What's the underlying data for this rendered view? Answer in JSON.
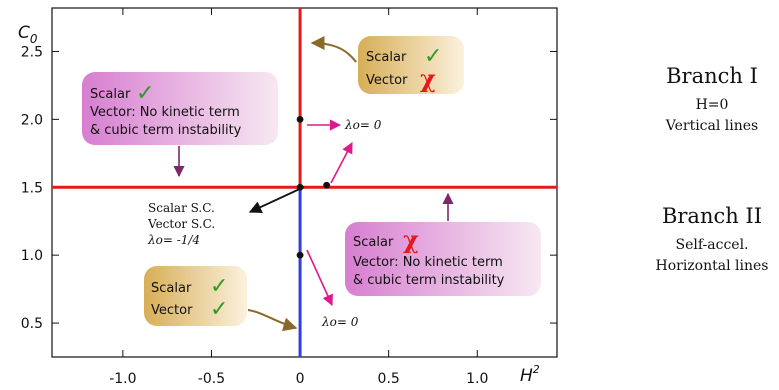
{
  "chart_data": {
    "type": "line",
    "xlabel": "H²",
    "ylabel": "C₀",
    "xlim": [
      -1.4,
      1.45
    ],
    "ylim": [
      0.25,
      2.82
    ],
    "x_ticks": [
      -1.0,
      -0.5,
      0,
      0.5,
      1.0
    ],
    "x_tick_labels": [
      "-1.0",
      "-0.5",
      "0",
      "0.5",
      "1.0"
    ],
    "y_ticks": [
      0.5,
      1.0,
      1.5,
      2.0,
      2.5
    ],
    "y_tick_labels": [
      "0.5",
      "1.0",
      "1.5",
      "2.0",
      "2.5"
    ],
    "grid": false,
    "colors": {
      "red": "#e41a1a",
      "blue": "#2f3fe0",
      "magenta": "#e0188a",
      "green": "#2f9b27"
    },
    "lines": [
      {
        "orientation": "vertical",
        "x": 0,
        "y_from": 1.5,
        "y_to": 2.82,
        "color": "#e41a1a"
      },
      {
        "orientation": "vertical",
        "x": 0,
        "y_from": 0.25,
        "y_to": 1.5,
        "color": "#2f3fe0"
      },
      {
        "orientation": "horizontal",
        "y": 1.5,
        "x_from": -1.4,
        "x_to": 1.45,
        "color": "#e41a1a"
      }
    ],
    "points": [
      {
        "x": 0,
        "y": 2.0
      },
      {
        "x": 0,
        "y": 1.5
      },
      {
        "x": 0,
        "y": 1.0
      },
      {
        "x": 0.15,
        "y": 1.515
      }
    ],
    "annotations": {
      "box_top_right": {
        "line1": "Scalar",
        "line2": "Vector",
        "mark1": "✓",
        "mark2": "χ"
      },
      "box_top_left": {
        "line1": "Scalar",
        "mark1": "✓",
        "line2": "Vector: No kinetic term",
        "line3": "& cubic term instability"
      },
      "box_bottom_right": {
        "line1": "Scalar",
        "mark1": "χ",
        "line2": "Vector: No kinetic term",
        "line3": "& cubic term instability"
      },
      "box_bottom_left": {
        "line1": "Scalar",
        "line2": "Vector",
        "mark1": "✓",
        "mark2": "✓"
      },
      "lambda_upper": "λo= 0",
      "lambda_lower": "λo= 0",
      "sc_label": {
        "line1": "Scalar S.C.",
        "line2": "Vector S.C.",
        "line3": "λo= -1/4"
      }
    }
  },
  "side_panel": {
    "branch1": {
      "title": "Branch I",
      "line1": "H=0",
      "line2": "Vertical lines"
    },
    "branch2": {
      "title": "Branch II",
      "line1": "Self-accel.",
      "line2": "Horizontal lines"
    }
  }
}
